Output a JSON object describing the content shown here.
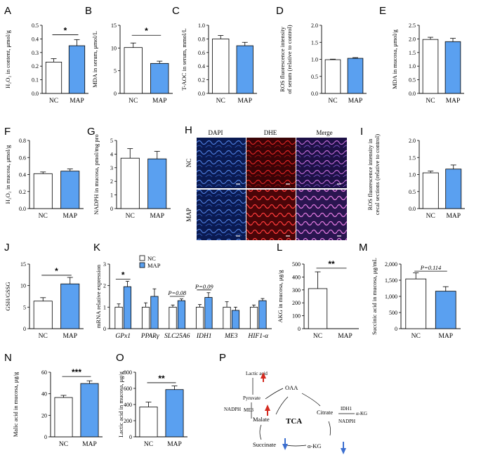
{
  "colors": {
    "nc_fill": "#ffffff",
    "map_fill": "#5aa0f0",
    "stroke": "#000000",
    "up_arrow": "#d42a1f",
    "down_arrow": "#3c6fd0"
  },
  "chart_data": [
    {
      "panel": "A",
      "type": "bar",
      "categories": [
        "NC",
        "MAP"
      ],
      "values": [
        0.23,
        0.35
      ],
      "errors": [
        0.025,
        0.045
      ],
      "ylabel": "H₂O₂ in content, μmol/g",
      "ylim": [
        0,
        0.5
      ],
      "yticks": [
        "0.0",
        "0.1",
        "0.2",
        "0.3",
        "0.4",
        "0.5"
      ],
      "sig": {
        "text": "*",
        "y": 0.43
      }
    },
    {
      "panel": "B",
      "type": "bar",
      "categories": [
        "NC",
        "MAP"
      ],
      "values": [
        10.1,
        6.6
      ],
      "errors": [
        1.0,
        0.5
      ],
      "ylabel": "MDA in serum, μmol/L",
      "ylim": [
        0,
        15
      ],
      "yticks": [
        "0",
        "5",
        "10",
        "15"
      ],
      "sig": {
        "text": "*",
        "y": 12.8
      }
    },
    {
      "panel": "C",
      "type": "bar",
      "categories": [
        "NC",
        "MAP"
      ],
      "values": [
        0.8,
        0.7
      ],
      "errors": [
        0.05,
        0.05
      ],
      "ylabel": "T-AOC in serum, mmol/L",
      "ylim": [
        0,
        1.0
      ],
      "yticks": [
        "0.0",
        "0.2",
        "0.4",
        "0.6",
        "0.8",
        "1.0"
      ]
    },
    {
      "panel": "D",
      "type": "bar",
      "categories": [
        "NC",
        "MAP"
      ],
      "values": [
        0.99,
        1.03
      ],
      "errors": [
        0.015,
        0.02
      ],
      "ylabel_lines": [
        "ROS fluorescence intensity",
        "of serum (relative to control)"
      ],
      "ylim": [
        0,
        2.0
      ],
      "yticks": [
        "0.0",
        "0.5",
        "1.0",
        "1.5",
        "2.0"
      ]
    },
    {
      "panel": "E",
      "type": "bar",
      "categories": [
        "NC",
        "MAP"
      ],
      "values": [
        1.98,
        1.9
      ],
      "errors": [
        0.08,
        0.12
      ],
      "ylabel": "MDA in mucosa, μmol/g",
      "ylim": [
        0,
        2.5
      ],
      "yticks": [
        "0.0",
        "0.5",
        "1.0",
        "1.5",
        "2.0",
        "2.5"
      ]
    },
    {
      "panel": "F",
      "type": "bar",
      "categories": [
        "NC",
        "MAP"
      ],
      "values": [
        0.41,
        0.44
      ],
      "errors": [
        0.02,
        0.025
      ],
      "ylabel": "H₂O₂ in mucosa, μmol/g",
      "ylim": [
        0,
        0.8
      ],
      "yticks": [
        "0.0",
        "0.2",
        "0.4",
        "0.6",
        "0.8"
      ]
    },
    {
      "panel": "G",
      "type": "bar",
      "categories": [
        "NC",
        "MAP"
      ],
      "values": [
        3.7,
        3.65
      ],
      "errors": [
        0.7,
        0.55
      ],
      "ylabel": "NADPH in mucosa, pmol/mg pro",
      "ylim": [
        0,
        5
      ],
      "yticks": [
        "0",
        "1",
        "2",
        "3",
        "4",
        "5"
      ]
    },
    {
      "panel": "I",
      "type": "bar",
      "categories": [
        "NC",
        "MAP"
      ],
      "values": [
        1.05,
        1.16
      ],
      "errors": [
        0.05,
        0.12
      ],
      "ylabel_lines": [
        "ROS fluorescence intensity in",
        "cecal sections (relative to control)"
      ],
      "ylim": [
        0,
        2.0
      ],
      "yticks": [
        "0.0",
        "0.5",
        "1.0",
        "1.5",
        "2.0"
      ]
    },
    {
      "panel": "J",
      "type": "bar",
      "categories": [
        "NC",
        "MAP"
      ],
      "values": [
        6.4,
        10.4
      ],
      "errors": [
        0.8,
        1.5
      ],
      "ylabel": "GSH/GSSG",
      "ylim": [
        0,
        15
      ],
      "yticks": [
        "0",
        "5",
        "10",
        "15"
      ],
      "sig": {
        "text": "*",
        "y": 12.4
      }
    },
    {
      "panel": "K",
      "type": "bar",
      "categories": [
        "GPx1",
        "PPARγ",
        "SLC25A6",
        "IDH1",
        "ME3",
        "HIF1-α"
      ],
      "series": [
        {
          "name": "NC",
          "values": [
            1.0,
            1.0,
            1.0,
            1.0,
            1.0,
            1.0
          ],
          "errors": [
            0.15,
            0.2,
            0.1,
            0.12,
            0.25,
            0.1
          ]
        },
        {
          "name": "MAP",
          "values": [
            1.95,
            1.5,
            1.3,
            1.45,
            0.85,
            1.3
          ],
          "errors": [
            0.25,
            0.35,
            0.08,
            0.22,
            0.15,
            0.1
          ]
        }
      ],
      "ylabel": "mRNA relative expression",
      "ylim": [
        0,
        3
      ],
      "yticks": [
        "0",
        "1",
        "2",
        "3"
      ],
      "annotations": [
        {
          "text": "*",
          "idx": 0,
          "y": 2.3
        },
        {
          "text": "P=0.08",
          "idx": 2,
          "y": 1.5
        },
        {
          "text": "P=0.09",
          "idx": 3,
          "y": 1.8
        }
      ]
    },
    {
      "panel": "L",
      "type": "bar",
      "categories": [
        "NC",
        "MAP"
      ],
      "values": [
        310,
        0
      ],
      "errors": [
        130,
        0
      ],
      "ylabel": "AKG in mucosa, μg/g",
      "ylim": [
        0,
        500
      ],
      "yticks": [
        "0",
        "100",
        "200",
        "300",
        "400",
        "500"
      ],
      "sig": {
        "text": "**",
        "y": 468
      }
    },
    {
      "panel": "M",
      "type": "bar",
      "categories": [
        "NC",
        "MAP"
      ],
      "values": [
        1540,
        1160
      ],
      "errors": [
        190,
        140
      ],
      "ylabel": "Succinic acid in mucosa, μg/mL",
      "ylim": [
        0,
        2000
      ],
      "yticks": [
        "0",
        "500",
        "1,000",
        "1,500",
        "2,000"
      ],
      "sig": {
        "text": "P=0.114",
        "y": 1780
      }
    },
    {
      "panel": "N",
      "type": "bar",
      "categories": [
        "NC",
        "MAP"
      ],
      "values": [
        36.5,
        49.5
      ],
      "errors": [
        2.0,
        2.5
      ],
      "ylabel": "Malic acid in mucosa, μg/g",
      "ylim": [
        0,
        60
      ],
      "yticks": [
        "0",
        "20",
        "40",
        "60"
      ],
      "sig": {
        "text": "***",
        "y": 56
      }
    },
    {
      "panel": "O",
      "type": "bar",
      "categories": [
        "NC",
        "MAP"
      ],
      "values": [
        370,
        585
      ],
      "errors": [
        60,
        45
      ],
      "ylabel": "Lactic acid in mucosa, μg/g",
      "ylim": [
        0,
        800
      ],
      "yticks": [
        "0",
        "200",
        "400",
        "600",
        "800"
      ],
      "sig": {
        "text": "**",
        "y": 670
      }
    }
  ],
  "legend_k": {
    "nc": "NC",
    "map": "MAP"
  },
  "panel_h": {
    "label": "H",
    "columns": [
      "DAPI",
      "DHE",
      "Merge"
    ],
    "rows": [
      "NC",
      "MAP"
    ]
  },
  "diagram_p": {
    "label": "P",
    "center": "TCA",
    "nodes": {
      "lactic": "Lactic acid",
      "pyruvate": "Pyruvate",
      "oaa": "OAA",
      "nadph_left": "NADPH",
      "me3": "ME3",
      "malate": "Malate",
      "citrate": "Citrate",
      "idh1": "IDH1",
      "akg_small": "α-KG",
      "nadph_right": "NADPH",
      "succinate": "Succinate",
      "akg": "α-KG"
    }
  }
}
